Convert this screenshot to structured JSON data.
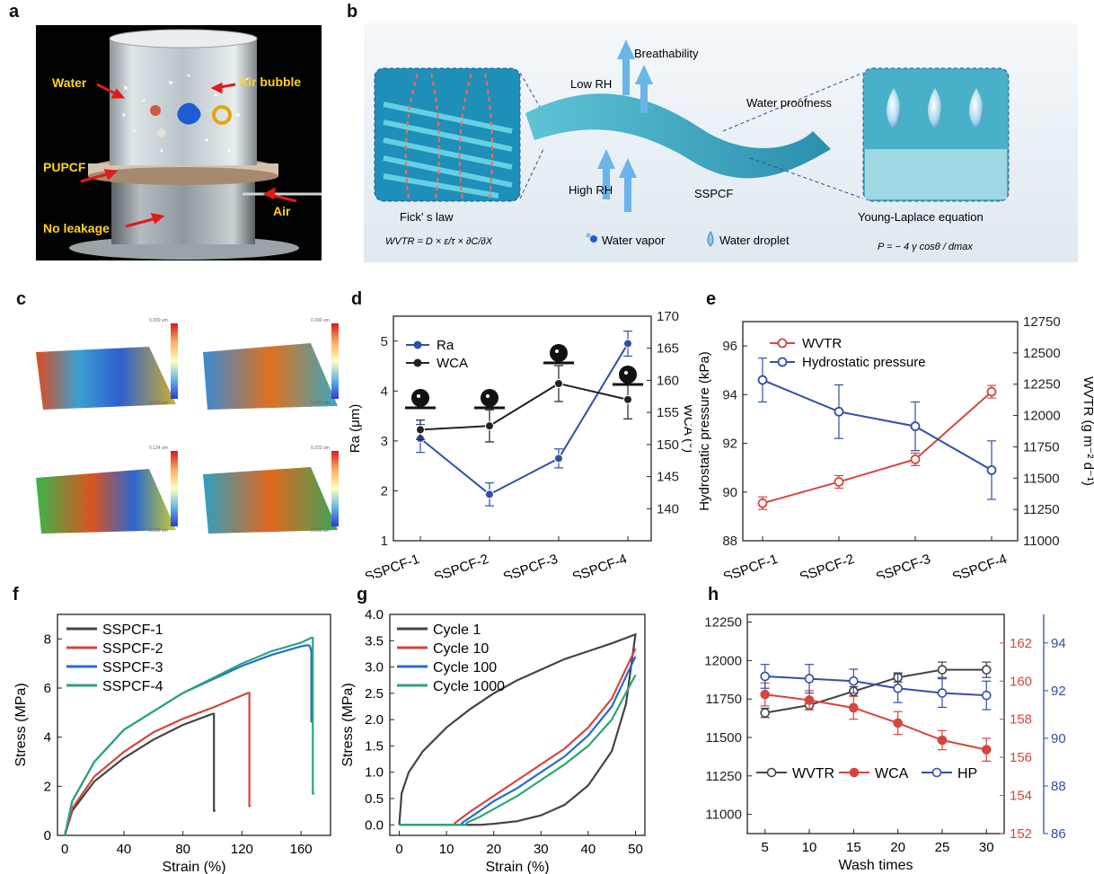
{
  "panels": {
    "a": "a",
    "b": "b",
    "c": "c",
    "d": "d",
    "e": "e",
    "f": "f",
    "g": "g",
    "h": "h"
  },
  "photo_labels": {
    "water": "Water",
    "air_bubble": "Air bubble",
    "pupcf": "PUPCF",
    "no_leakage": "No leakage",
    "air": "Air"
  },
  "schematic": {
    "low_rh": "Low RH",
    "breathability": "Breathability",
    "water_proofness": "Water proofness",
    "high_rh": "High RH",
    "sspcf": "SSPCF",
    "ficks_law": "Fick’ s law",
    "young_laplace": "Young-Laplace equation",
    "water_vapor": "Water vapor",
    "water_droplet": "Water droplet",
    "wvtr_equation": "WVTR = D × ε/τ × ∂C/∂X",
    "p_equation": "P = − 4 γ cosθ / dmax"
  },
  "surface_maps": [
    {
      "max": "0.300 um",
      "min": "0.000 um"
    },
    {
      "max": "0.300 um",
      "min": "0.000 um"
    },
    {
      "max": "0.124 um",
      "min": "0.000 um"
    },
    {
      "max": "0.222 um",
      "min": "0.000 um"
    }
  ],
  "colors": {
    "blue": "#2f50a8",
    "red": "#d6453e",
    "black": "#222222",
    "green": "#2ea37a",
    "gray": "#444444",
    "blue_line": "#1e6fd0"
  },
  "chart_data": [
    {
      "id": "d",
      "type": "line",
      "categories": [
        "SSPCF-1",
        "SSPCF-2",
        "SSPCF-3",
        "SSPCF-4"
      ],
      "ylabel": "Ra (μm)",
      "ylim": [
        1,
        5.5
      ],
      "yticks": [
        "1",
        "2",
        "3",
        "4",
        "5"
      ],
      "y2label": "WCA (°)",
      "y2lim": [
        135,
        170
      ],
      "y2ticks": [
        "140",
        "145",
        "150",
        "155",
        "160",
        "165",
        "170"
      ],
      "series": [
        {
          "name": "Ra",
          "axis": "left",
          "values": [
            3.05,
            1.93,
            2.65,
            4.95
          ],
          "errors": [
            0.28,
            0.23,
            0.19,
            0.25
          ]
        },
        {
          "name": "WCA",
          "axis": "right",
          "values": [
            152.3,
            152.9,
            159.5,
            157.0
          ],
          "errors": [
            1.5,
            2.5,
            2.8,
            3.0
          ]
        }
      ]
    },
    {
      "id": "e",
      "type": "line",
      "categories": [
        "SSPCF-1",
        "SSPCF-2",
        "SSPCF-3",
        "SSPCF-4"
      ],
      "ylabel": "Hydrostatic pressure  (kPa)",
      "ylim": [
        88,
        97
      ],
      "yticks": [
        "88",
        "90",
        "92",
        "94",
        "96"
      ],
      "y2label": "WVTR (g m⁻² d⁻¹)",
      "y2lim": [
        11000,
        12750
      ],
      "y2ticks": [
        "11000",
        "11250",
        "11500",
        "11750",
        "12000",
        "12250",
        "12500",
        "12750"
      ],
      "series": [
        {
          "name": "WVTR",
          "axis": "right",
          "values": [
            11300,
            11470,
            11650,
            12190
          ],
          "errors": [
            50,
            50,
            50,
            50
          ]
        },
        {
          "name": "Hydrostatic pressure",
          "axis": "left",
          "values": [
            94.6,
            93.3,
            92.7,
            90.9
          ],
          "errors": [
            0.9,
            1.1,
            1.0,
            1.2
          ]
        }
      ]
    },
    {
      "id": "f",
      "type": "line",
      "xlabel": "Strain (%)",
      "ylabel": "Stress (MPa)",
      "xlim": [
        -5,
        180
      ],
      "ylim": [
        0,
        9
      ],
      "xticks": [
        "0",
        "40",
        "80",
        "120",
        "160"
      ],
      "yticks": [
        "0",
        "2",
        "4",
        "6",
        "8"
      ],
      "series": [
        {
          "name": "SSPCF-1",
          "x": [
            0,
            5,
            20,
            40,
            60,
            80,
            100,
            101,
            101,
            102
          ],
          "y": [
            0,
            1.0,
            2.2,
            3.15,
            3.9,
            4.5,
            4.95,
            4.95,
            1.0,
            1.0
          ]
        },
        {
          "name": "SSPCF-2",
          "x": [
            0,
            5,
            20,
            40,
            60,
            80,
            100,
            124,
            125,
            125,
            126
          ],
          "y": [
            0,
            1.1,
            2.4,
            3.4,
            4.2,
            4.75,
            5.2,
            5.8,
            5.8,
            1.2,
            1.2
          ]
        },
        {
          "name": "SSPCF-3",
          "x": [
            0,
            5,
            20,
            40,
            60,
            80,
            100,
            120,
            140,
            160,
            165,
            166,
            167,
            167
          ],
          "y": [
            0,
            1.4,
            3.0,
            4.3,
            5.05,
            5.8,
            6.35,
            6.9,
            7.35,
            7.7,
            7.75,
            7.7,
            7.5,
            4.6
          ]
        },
        {
          "name": "SSPCF-4",
          "x": [
            0,
            5,
            20,
            40,
            60,
            80,
            100,
            120,
            140,
            160,
            167,
            168,
            168,
            169
          ],
          "y": [
            0,
            1.4,
            3.0,
            4.3,
            5.05,
            5.8,
            6.4,
            7.0,
            7.5,
            7.85,
            8.05,
            8.05,
            1.7,
            1.7
          ]
        }
      ]
    },
    {
      "id": "g",
      "type": "line",
      "xlabel": "Strain (%)",
      "ylabel": "Stress (MPa)",
      "xlim": [
        -2,
        52
      ],
      "ylim": [
        -0.2,
        4.0
      ],
      "xticks": [
        "0",
        "10",
        "20",
        "30",
        "40",
        "50"
      ],
      "yticks": [
        "0.0",
        "0.5",
        "1.0",
        "1.5",
        "2.0",
        "2.5",
        "3.0",
        "3.5",
        "4.0"
      ],
      "series": [
        {
          "name": "Cycle 1",
          "x": [
            0,
            0.5,
            2,
            5,
            10,
            15,
            20,
            25,
            30,
            35,
            40,
            45,
            50,
            48,
            45,
            40,
            35,
            30,
            25,
            20,
            17,
            0
          ],
          "y": [
            0,
            0.6,
            1.0,
            1.4,
            1.85,
            2.2,
            2.5,
            2.75,
            2.95,
            3.15,
            3.3,
            3.45,
            3.62,
            2.3,
            1.4,
            0.75,
            0.38,
            0.18,
            0.07,
            0.02,
            0,
            0
          ]
        },
        {
          "name": "Cycle 10",
          "x": [
            0,
            11.5,
            12,
            15,
            20,
            25,
            30,
            35,
            40,
            45,
            50
          ],
          "y": [
            0,
            0,
            0.05,
            0.25,
            0.55,
            0.85,
            1.15,
            1.45,
            1.85,
            2.4,
            3.35
          ]
        },
        {
          "name": "Cycle 100",
          "x": [
            0,
            13,
            13.5,
            16,
            20,
            25,
            30,
            35,
            40,
            45,
            50
          ],
          "y": [
            0,
            0,
            0.05,
            0.2,
            0.45,
            0.7,
            1.0,
            1.3,
            1.7,
            2.25,
            3.2
          ]
        },
        {
          "name": "Cycle 1000",
          "x": [
            0,
            14,
            14.5,
            17,
            20,
            25,
            30,
            35,
            40,
            45,
            50
          ],
          "y": [
            0,
            0,
            0.05,
            0.15,
            0.3,
            0.55,
            0.85,
            1.15,
            1.5,
            2.0,
            2.85
          ]
        }
      ]
    },
    {
      "id": "h",
      "type": "line",
      "xlabel": "Wash times",
      "x": [
        5,
        10,
        15,
        20,
        25,
        30
      ],
      "xlim": [
        3,
        32
      ],
      "xticks": [
        "5",
        "10",
        "15",
        "20",
        "25",
        "30"
      ],
      "ylim": [
        10875,
        12300
      ],
      "yticks": [
        "11000",
        "11250",
        "11500",
        "11750",
        "12000",
        "12250"
      ],
      "y2lim": [
        152,
        163.5
      ],
      "y2ticks": [
        "152",
        "154",
        "156",
        "158",
        "160",
        "162"
      ],
      "y3lim": [
        86,
        95.2
      ],
      "y3ticks": [
        "86",
        "88",
        "90",
        "92",
        "94"
      ],
      "series": [
        {
          "name": "WVTR",
          "axis": "left",
          "values": [
            11660,
            11710,
            11800,
            11890,
            11940,
            11940
          ],
          "errors": [
            30,
            30,
            30,
            30,
            50,
            50
          ]
        },
        {
          "name": "WCA",
          "axis": "right",
          "values": [
            159.3,
            159.0,
            158.6,
            157.8,
            156.9,
            156.4
          ],
          "errors": [
            0.6,
            0.5,
            0.6,
            0.6,
            0.5,
            0.6
          ]
        },
        {
          "name": "HP",
          "axis": "far-right",
          "values": [
            92.6,
            92.5,
            92.4,
            92.1,
            91.9,
            91.8
          ],
          "errors": [
            0.5,
            0.6,
            0.5,
            0.6,
            0.6,
            0.6
          ]
        }
      ]
    }
  ]
}
